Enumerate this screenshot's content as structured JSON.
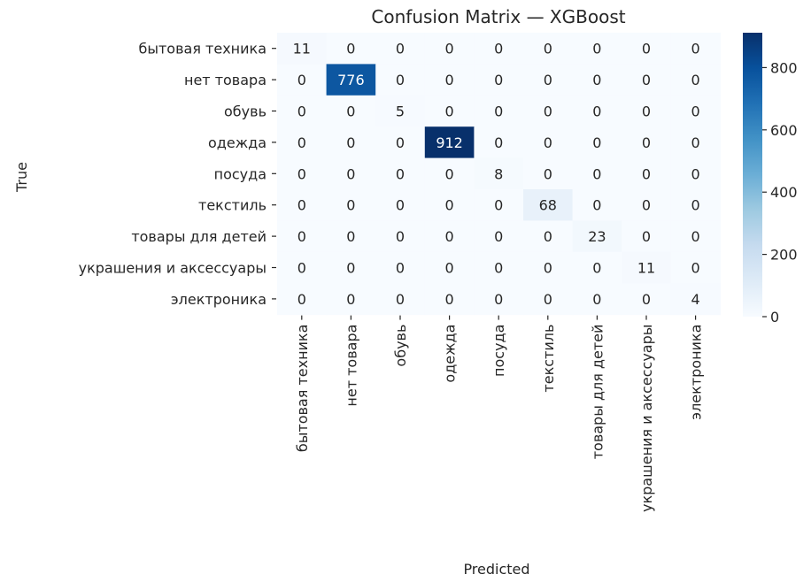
{
  "chart_data": {
    "type": "heatmap",
    "title": "Confusion Matrix — XGBoost",
    "xlabel": "Predicted",
    "ylabel": "True",
    "row_labels": [
      "бытовая техника",
      "нет товара",
      "обувь",
      "одежда",
      "посуда",
      "текстиль",
      "товары для детей",
      "украшения и аксессуары",
      "электроника"
    ],
    "col_labels": [
      "бытовая техника",
      "нет товара",
      "обувь",
      "одежда",
      "посуда",
      "текстиль",
      "товары для детей",
      "украшения и аксессуары",
      "электроника"
    ],
    "values": [
      [
        11,
        0,
        0,
        0,
        0,
        0,
        0,
        0,
        0
      ],
      [
        0,
        776,
        0,
        0,
        0,
        0,
        0,
        0,
        0
      ],
      [
        0,
        0,
        5,
        0,
        0,
        0,
        0,
        0,
        0
      ],
      [
        0,
        0,
        0,
        912,
        0,
        0,
        0,
        0,
        0
      ],
      [
        0,
        0,
        0,
        0,
        8,
        0,
        0,
        0,
        0
      ],
      [
        0,
        0,
        0,
        0,
        0,
        68,
        0,
        0,
        0
      ],
      [
        0,
        0,
        0,
        0,
        0,
        0,
        23,
        0,
        0
      ],
      [
        0,
        0,
        0,
        0,
        0,
        0,
        0,
        11,
        0
      ],
      [
        0,
        0,
        0,
        0,
        0,
        0,
        0,
        0,
        4
      ]
    ],
    "colorbar": {
      "min": 0,
      "max": 912,
      "ticks": [
        0,
        200,
        400,
        600,
        800
      ]
    },
    "colormap": "Blues",
    "colormap_stops": [
      "#f7fbff",
      "#deebf7",
      "#c6dbef",
      "#9ecae1",
      "#6baed6",
      "#4292c6",
      "#2171b5",
      "#08519c",
      "#08306b"
    ]
  }
}
